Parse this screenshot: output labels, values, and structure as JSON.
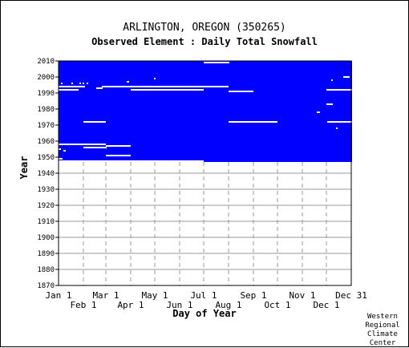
{
  "chart_data": {
    "type": "heatmap",
    "title": "ARLINGTON, OREGON   (350265)",
    "subtitle": "Observed Element : Daily Total Snowfall",
    "xlabel": "Day of Year",
    "ylabel": "Year",
    "x_range_days": [
      1,
      366
    ],
    "ylim": [
      1870,
      2010
    ],
    "y_ticks": [
      1870,
      1880,
      1890,
      1900,
      1910,
      1920,
      1930,
      1940,
      1950,
      1960,
      1970,
      1980,
      1990,
      2000,
      2010
    ],
    "x_ticks_top_row": [
      {
        "label": "Jan 1",
        "day": 1
      },
      {
        "label": "Mar 1",
        "day": 60
      },
      {
        "label": "May 1",
        "day": 121
      },
      {
        "label": "Jul 1",
        "day": 182
      },
      {
        "label": "Sep 1",
        "day": 244
      },
      {
        "label": "Nov 1",
        "day": 305
      },
      {
        "label": "Dec 31",
        "day": 366
      }
    ],
    "x_ticks_bottom_row": [
      {
        "label": "Feb 1",
        "day": 32
      },
      {
        "label": "Apr 1",
        "day": 91
      },
      {
        "label": "Jun 1",
        "day": 152
      },
      {
        "label": "Aug 1",
        "day": 213
      },
      {
        "label": "Oct 1",
        "day": 274
      },
      {
        "label": "Dec 1",
        "day": 335
      }
    ],
    "grid": true,
    "colors": {
      "data_present": "#0000ff",
      "missing": "#ffffff",
      "grid": "#999999"
    },
    "coverage": [
      {
        "from_year": 1948,
        "to_year": 2010,
        "from_day": 1,
        "to_day": 181
      },
      {
        "from_year": 1947,
        "to_year": 2010,
        "from_day": 182,
        "to_day": 366
      }
    ],
    "missing_periods": [
      {
        "year": 2009,
        "from_day": 182,
        "to_day": 213
      },
      {
        "year": 1999,
        "from_day": 120,
        "to_day": 121
      },
      {
        "year": 1997,
        "from_day": 86,
        "to_day": 88
      },
      {
        "year": 1994,
        "from_day": 55,
        "to_day": 212
      },
      {
        "year": 1996,
        "from_day": 4,
        "to_day": 5
      },
      {
        "year": 1996,
        "from_day": 17,
        "to_day": 18
      },
      {
        "year": 1996,
        "from_day": 27,
        "to_day": 28
      },
      {
        "year": 1996,
        "from_day": 31,
        "to_day": 32
      },
      {
        "year": 1996,
        "from_day": 36,
        "to_day": 37
      },
      {
        "year": 1994,
        "from_day": 1,
        "to_day": 33
      },
      {
        "year": 1993,
        "from_day": 48,
        "to_day": 55
      },
      {
        "year": 1992,
        "from_day": 1,
        "to_day": 25
      },
      {
        "year": 1992,
        "from_day": 91,
        "to_day": 181
      },
      {
        "year": 1991,
        "from_day": 213,
        "to_day": 243
      },
      {
        "year": 1992,
        "from_day": 335,
        "to_day": 366
      },
      {
        "year": 1972,
        "from_day": 32,
        "to_day": 59
      },
      {
        "year": 1972,
        "from_day": 213,
        "to_day": 273
      },
      {
        "year": 1972,
        "from_day": 336,
        "to_day": 366
      },
      {
        "year": 1983,
        "from_day": 335,
        "to_day": 342
      },
      {
        "year": 1978,
        "from_day": 323,
        "to_day": 326
      },
      {
        "year": 1968,
        "from_day": 347,
        "to_day": 348
      },
      {
        "year": 2000,
        "from_day": 356,
        "to_day": 363
      },
      {
        "year": 1998,
        "from_day": 341,
        "to_day": 342
      },
      {
        "year": 1958,
        "from_day": 1,
        "to_day": 59
      },
      {
        "year": 1957,
        "from_day": 60,
        "to_day": 90
      },
      {
        "year": 1956,
        "from_day": 32,
        "to_day": 60
      },
      {
        "year": 1955,
        "from_day": 1,
        "to_day": 3
      },
      {
        "year": 1954,
        "from_day": 7,
        "to_day": 9
      },
      {
        "year": 1951,
        "from_day": 60,
        "to_day": 90
      },
      {
        "year": 1949,
        "from_day": 1,
        "to_day": 5
      }
    ]
  },
  "credit": {
    "line1": "Western",
    "line2": "Regional",
    "line3": "Climate",
    "line4": "Center"
  }
}
